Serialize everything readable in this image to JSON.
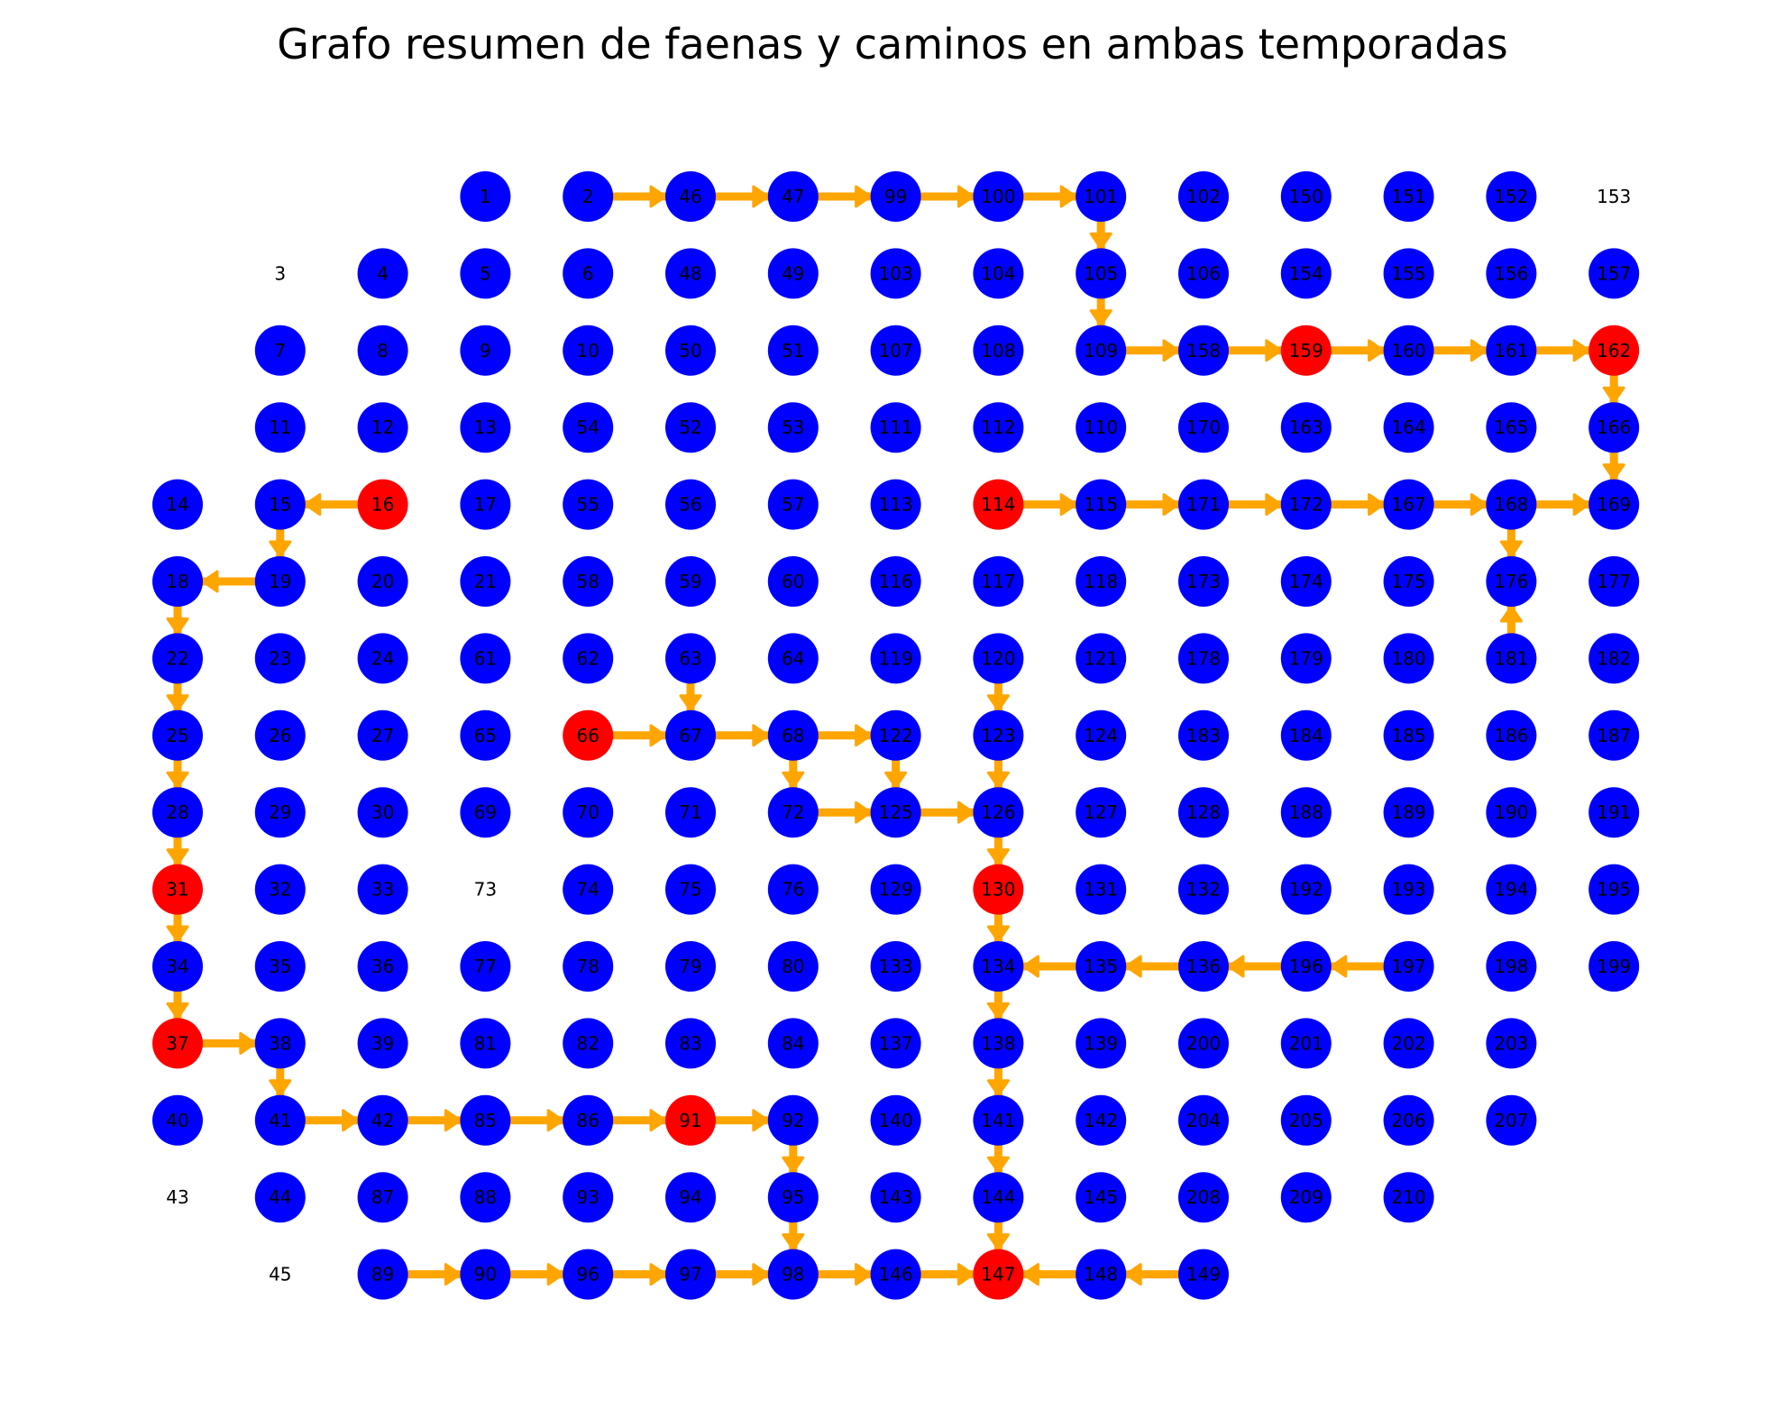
{
  "title": "Grafo resumen de faenas y caminos en ambas temporadas",
  "colors": {
    "node": "#0000ff",
    "node_highlight": "#ff0000",
    "edge": "#ffa500",
    "label": "#000000"
  },
  "grid_rows": [
    [
      null,
      null,
      null,
      1,
      2,
      46,
      47,
      99,
      100,
      101,
      102,
      150,
      151,
      152,
      153
    ],
    [
      null,
      3,
      4,
      5,
      6,
      48,
      49,
      103,
      104,
      105,
      106,
      154,
      155,
      156,
      157
    ],
    [
      null,
      7,
      8,
      9,
      10,
      50,
      51,
      107,
      108,
      109,
      158,
      159,
      160,
      161,
      162
    ],
    [
      null,
      11,
      12,
      13,
      54,
      52,
      53,
      111,
      112,
      110,
      170,
      163,
      164,
      165,
      166
    ],
    [
      14,
      15,
      16,
      17,
      55,
      56,
      57,
      113,
      114,
      115,
      171,
      172,
      167,
      168,
      169
    ],
    [
      18,
      19,
      20,
      21,
      58,
      59,
      60,
      116,
      117,
      118,
      173,
      174,
      175,
      176,
      177
    ],
    [
      22,
      23,
      24,
      61,
      62,
      63,
      64,
      119,
      120,
      121,
      178,
      179,
      180,
      181,
      182
    ],
    [
      25,
      26,
      27,
      65,
      66,
      67,
      68,
      122,
      123,
      124,
      183,
      184,
      185,
      186,
      187
    ],
    [
      28,
      29,
      30,
      69,
      70,
      71,
      72,
      125,
      126,
      127,
      128,
      188,
      189,
      190,
      191
    ],
    [
      31,
      32,
      33,
      73,
      74,
      75,
      76,
      129,
      130,
      131,
      132,
      192,
      193,
      194,
      195
    ],
    [
      34,
      35,
      36,
      77,
      78,
      79,
      80,
      133,
      134,
      135,
      136,
      196,
      197,
      198,
      199
    ],
    [
      37,
      38,
      39,
      81,
      82,
      83,
      84,
      137,
      138,
      139,
      200,
      201,
      202,
      203,
      null
    ],
    [
      40,
      41,
      42,
      85,
      86,
      91,
      92,
      140,
      141,
      142,
      204,
      205,
      206,
      207,
      null
    ],
    [
      43,
      44,
      87,
      88,
      93,
      94,
      95,
      143,
      144,
      145,
      208,
      209,
      210,
      null,
      null
    ],
    [
      null,
      45,
      89,
      90,
      96,
      97,
      98,
      146,
      147,
      148,
      149,
      null,
      null,
      null,
      null
    ]
  ],
  "unmarked_nodes": [
    3,
    43,
    45,
    73,
    153
  ],
  "highlighted_nodes": [
    16,
    31,
    37,
    66,
    91,
    114,
    130,
    147,
    159,
    162
  ],
  "edges": [
    [
      2,
      46
    ],
    [
      46,
      47
    ],
    [
      47,
      99
    ],
    [
      99,
      100
    ],
    [
      100,
      101
    ],
    [
      101,
      105
    ],
    [
      105,
      109
    ],
    [
      109,
      158
    ],
    [
      158,
      159
    ],
    [
      159,
      160
    ],
    [
      160,
      161
    ],
    [
      161,
      162
    ],
    [
      162,
      166
    ],
    [
      166,
      169
    ],
    [
      114,
      115
    ],
    [
      115,
      171
    ],
    [
      171,
      172
    ],
    [
      172,
      167
    ],
    [
      167,
      168
    ],
    [
      168,
      169
    ],
    [
      168,
      176
    ],
    [
      181,
      176
    ],
    [
      16,
      15
    ],
    [
      15,
      19
    ],
    [
      19,
      18
    ],
    [
      18,
      22
    ],
    [
      22,
      25
    ],
    [
      25,
      28
    ],
    [
      28,
      31
    ],
    [
      31,
      34
    ],
    [
      34,
      37
    ],
    [
      37,
      38
    ],
    [
      38,
      41
    ],
    [
      41,
      42
    ],
    [
      42,
      85
    ],
    [
      85,
      86
    ],
    [
      86,
      91
    ],
    [
      91,
      92
    ],
    [
      92,
      95
    ],
    [
      95,
      98
    ],
    [
      66,
      67
    ],
    [
      67,
      68
    ],
    [
      68,
      122
    ],
    [
      68,
      72
    ],
    [
      63,
      67
    ],
    [
      72,
      125
    ],
    [
      125,
      126
    ],
    [
      122,
      125
    ],
    [
      120,
      123
    ],
    [
      123,
      126
    ],
    [
      126,
      130
    ],
    [
      130,
      134
    ],
    [
      134,
      138
    ],
    [
      138,
      141
    ],
    [
      141,
      144
    ],
    [
      144,
      147
    ],
    [
      197,
      196
    ],
    [
      196,
      136
    ],
    [
      136,
      135
    ],
    [
      135,
      134
    ],
    [
      89,
      90
    ],
    [
      90,
      96
    ],
    [
      96,
      97
    ],
    [
      97,
      98
    ],
    [
      98,
      146
    ],
    [
      146,
      147
    ],
    [
      148,
      147
    ],
    [
      149,
      148
    ]
  ]
}
